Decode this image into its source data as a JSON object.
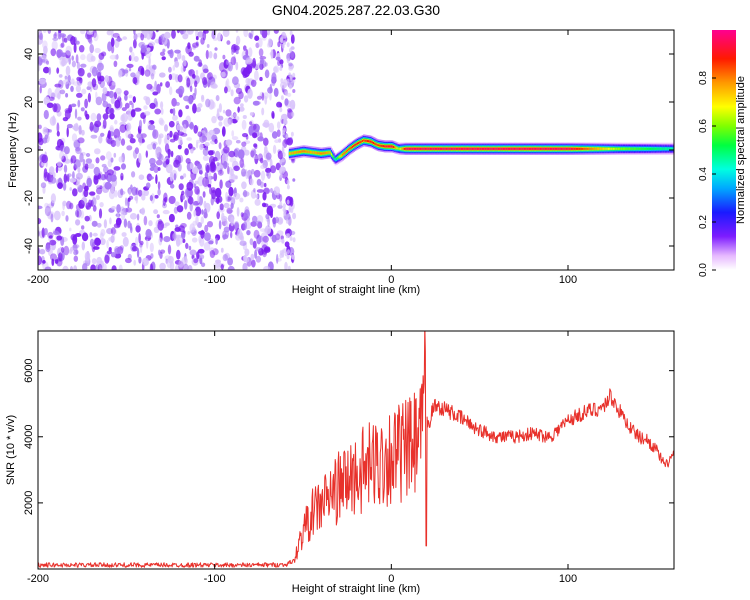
{
  "figure_title": "GN04.2025.287.22.03.G30",
  "colors": {
    "signal_line": "#e8312b",
    "noise_speckle": "#7a2bea",
    "axis": "#000000"
  },
  "chart_data": [
    {
      "type": "heatmap",
      "xlabel": "Height of straight line (km)",
      "ylabel": "Frequency (Hz)",
      "xlim": [
        -200,
        160
      ],
      "ylim": [
        -50,
        50
      ],
      "xticks": [
        -200,
        -100,
        0,
        100
      ],
      "yticks": [
        -40,
        -20,
        0,
        20,
        40
      ],
      "noise_region_x": [
        -200,
        -55
      ],
      "signal_trace": {
        "x": [
          -58,
          -50,
          -45,
          -40,
          -35,
          -32,
          -28,
          -24,
          -20,
          -16,
          -12,
          -8,
          -4,
          0,
          4,
          8,
          20,
          60,
          100,
          130,
          160
        ],
        "freq_hz": [
          -1.5,
          -0.5,
          -1.0,
          -1.5,
          -1.0,
          -4.0,
          -2.0,
          0.5,
          2.5,
          4.0,
          3.5,
          2.0,
          1.5,
          1.5,
          0.5,
          0.5,
          0.5,
          0.5,
          0.5,
          0.5,
          0.5
        ],
        "amplitude": [
          0.75,
          0.8,
          0.75,
          0.8,
          0.75,
          0.45,
          0.8,
          0.85,
          0.9,
          0.85,
          0.9,
          0.85,
          0.9,
          0.95,
          0.6,
          0.95,
          0.95,
          0.95,
          0.95,
          0.6,
          0.45
        ]
      },
      "colorbar": {
        "label": "Normalized spectral amplitude",
        "range": [
          0,
          1
        ],
        "ticks": [
          "0.0",
          "0.2",
          "0.4",
          "0.6",
          "0.8"
        ]
      }
    },
    {
      "type": "line",
      "xlabel": "Height of straight line (km)",
      "ylabel": "SNR (10 * v/v)",
      "xlim": [
        -200,
        160
      ],
      "ylim": [
        0,
        7200
      ],
      "xticks": [
        -200,
        -100,
        0,
        100
      ],
      "yticks": [
        2000,
        4000,
        6000
      ],
      "x": [
        -200,
        -180,
        -160,
        -140,
        -120,
        -100,
        -80,
        -60,
        -55,
        -50,
        -45,
        -40,
        -35,
        -30,
        -25,
        -20,
        -15,
        -10,
        -5,
        0,
        5,
        10,
        15,
        18,
        19,
        20,
        21,
        22,
        25,
        30,
        40,
        50,
        60,
        70,
        80,
        90,
        100,
        110,
        120,
        124,
        130,
        135,
        140,
        145,
        150,
        155,
        160
      ],
      "values": [
        120,
        120,
        120,
        120,
        120,
        120,
        120,
        130,
        250,
        1150,
        1650,
        1950,
        2200,
        2450,
        2650,
        2850,
        3000,
        3150,
        3300,
        3450,
        3500,
        3600,
        3750,
        4150,
        7100,
        4500,
        4300,
        4650,
        4950,
        4850,
        4550,
        4200,
        4000,
        4000,
        4100,
        4000,
        4500,
        4750,
        4900,
        5250,
        4700,
        4300,
        4000,
        3900,
        3600,
        3100,
        3500
      ]
    }
  ]
}
